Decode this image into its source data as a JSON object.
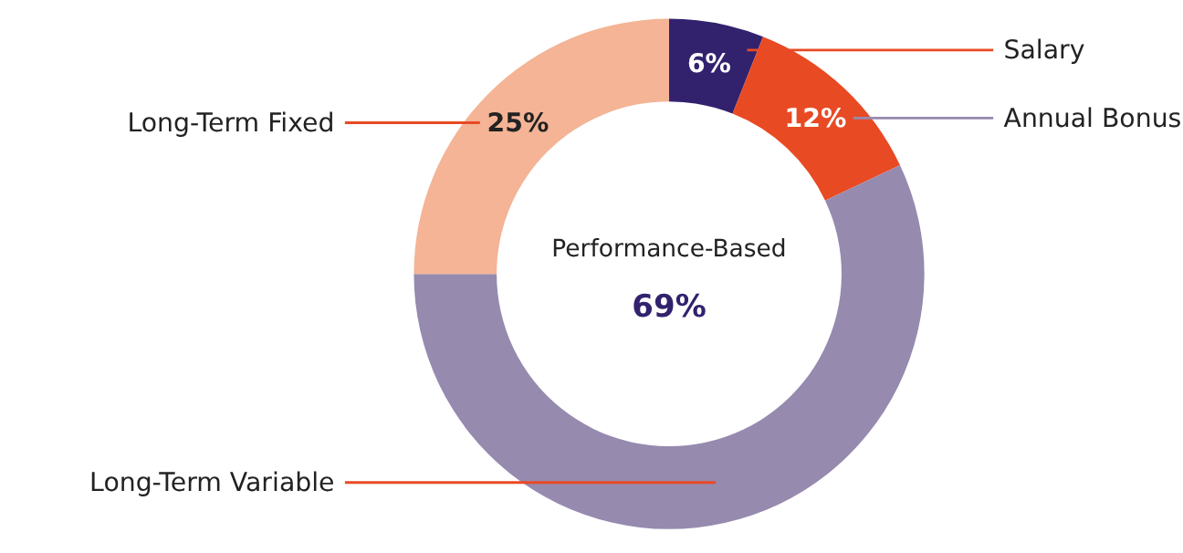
{
  "chart_data": {
    "type": "donut",
    "categories": [
      "Salary",
      "Annual Bonus",
      "Long-Term Variable",
      "Long-Term Fixed"
    ],
    "values": [
      6,
      12,
      57,
      25
    ],
    "colors": [
      "#32226e",
      "#e84a24",
      "#968aaf",
      "#f4b495"
    ],
    "value_labels": [
      "6%",
      "12%",
      null,
      "25%"
    ],
    "annotations": [
      "Performance-Based",
      "69%"
    ]
  }
}
